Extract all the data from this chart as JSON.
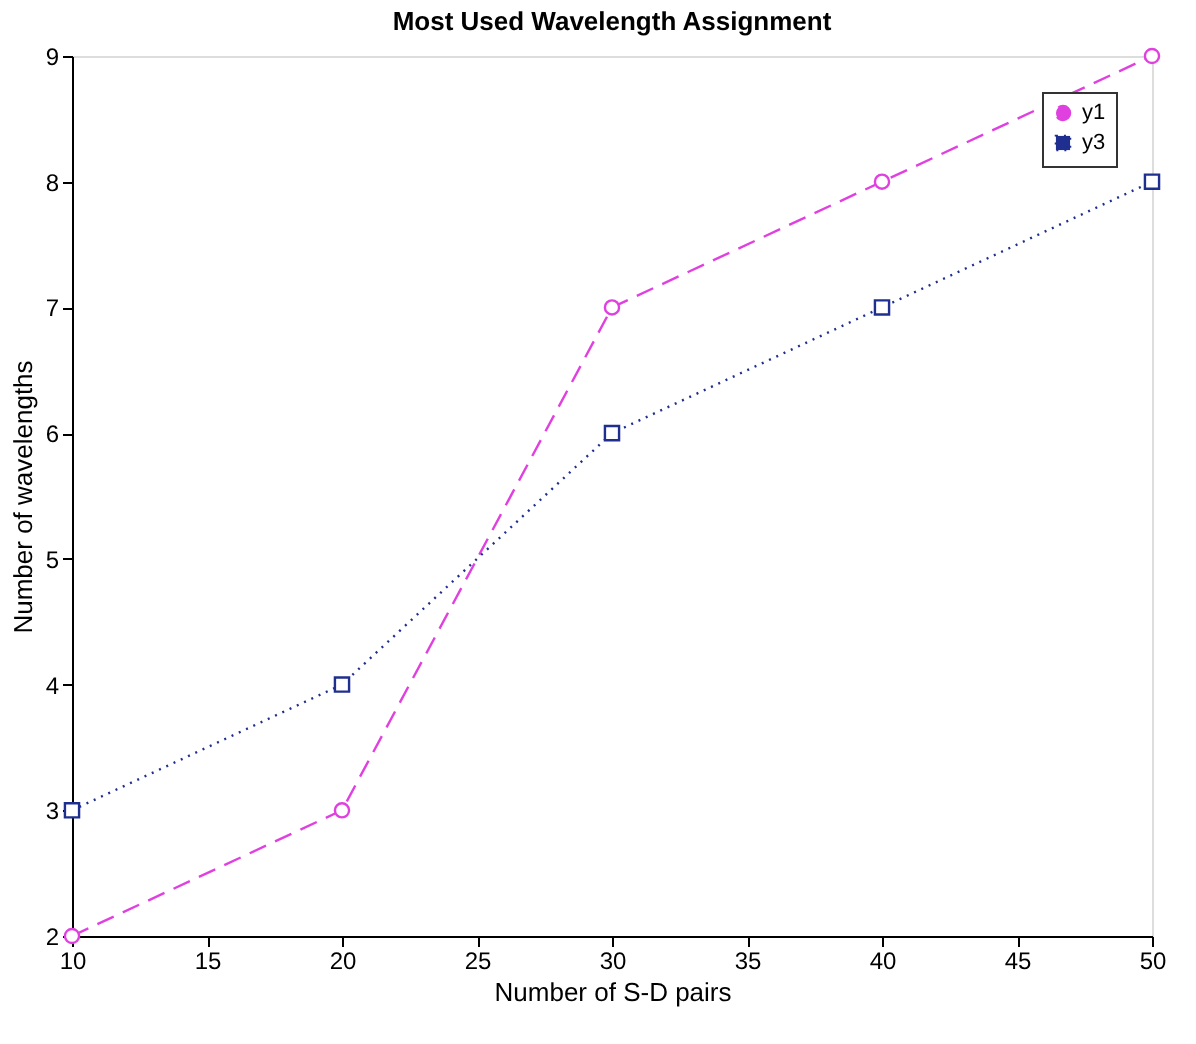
{
  "chart_data": {
    "type": "line",
    "title": "Most Used Wavelength Assignment",
    "xlabel": "Number of S-D pairs",
    "ylabel": "Number of wavelengths",
    "x": [
      10,
      20,
      30,
      40,
      50
    ],
    "series": [
      {
        "name": "y1",
        "color": "#e040e0",
        "values": [
          2,
          3,
          7,
          8,
          9
        ],
        "marker": "circle",
        "line_style": "dashed"
      },
      {
        "name": "y3",
        "color": "#1f2f8f",
        "values": [
          3,
          4,
          6,
          7,
          8
        ],
        "marker": "square",
        "line_style": "dotted"
      }
    ],
    "xlim": [
      10,
      50
    ],
    "xticks": [
      10,
      15,
      20,
      25,
      30,
      35,
      40,
      45,
      50
    ],
    "ylim": [
      2,
      9
    ],
    "yticks": [
      2,
      3,
      4,
      5,
      6,
      7,
      8,
      9
    ],
    "grid": false,
    "legend": "top right"
  }
}
